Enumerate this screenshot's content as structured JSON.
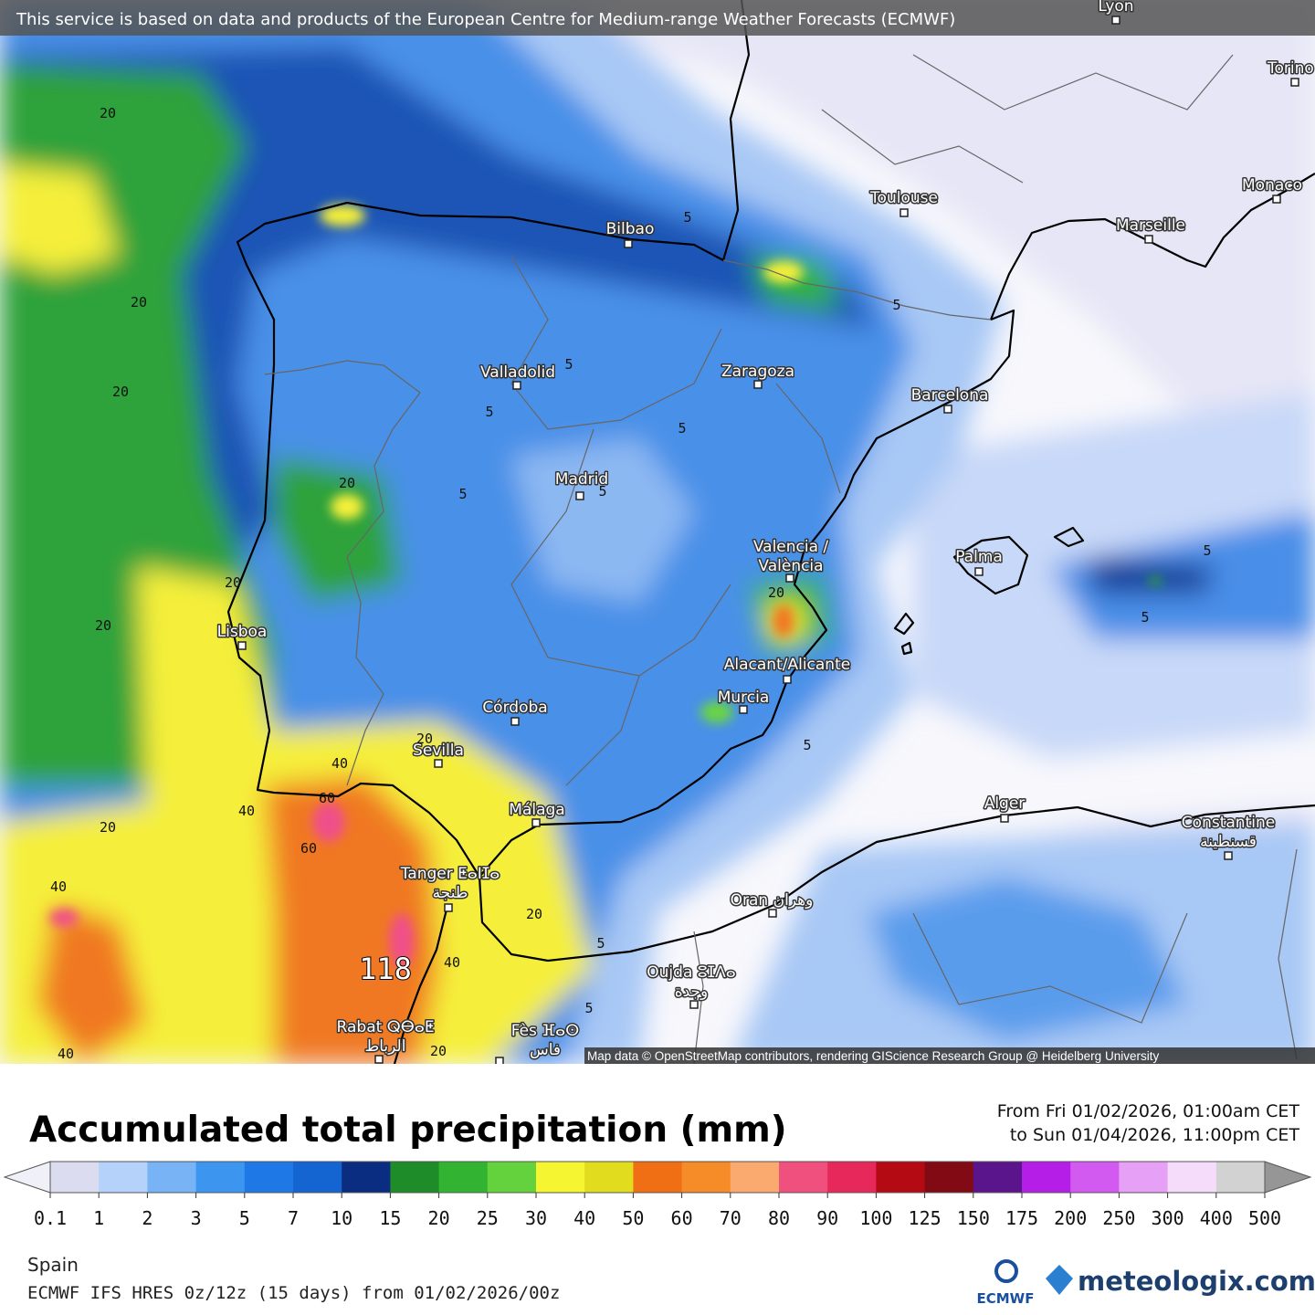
{
  "banner": "This service is based on data and products of the European Centre for Medium-range Weather Forecasts (ECMWF)",
  "attribution": "Map data © OpenStreetMap contributors, rendering GIScience Research Group @ Heidelberg University",
  "cities": [
    [
      "Lyon"
    ],
    [
      "Torino"
    ],
    [
      "Monaco"
    ],
    [
      "Toulouse"
    ],
    [
      "Marseille"
    ],
    [
      "Bilbao"
    ],
    [
      "Valladolid"
    ],
    [
      "Zaragoza"
    ],
    [
      "Barcelona"
    ],
    [
      "Madrid"
    ],
    [
      "Valencia /",
      "València"
    ],
    [
      "Palma"
    ],
    [
      "Lisboa"
    ],
    [
      "Alacant/Alicante"
    ],
    [
      "Murcia"
    ],
    [
      "Córdoba"
    ],
    [
      "Sevilla"
    ],
    [
      "Málaga"
    ],
    [
      "Alger"
    ],
    [
      "Constantine",
      "قسنطينة"
    ],
    [
      "Tanger ⵟⴰⵏⵊⴰ",
      "طنجة"
    ],
    [
      "Oran وهران"
    ],
    [
      "Oujda ⵓⵊⴷⴰ",
      "وجدة"
    ],
    [
      "Rabat ⵕⴱⴰⵟ",
      "الرباط"
    ],
    [
      "Fès ⴼⴰⵙ",
      "فاس"
    ]
  ],
  "contour_labels": [
    20,
    20,
    20,
    20,
    20,
    20,
    20,
    20,
    20,
    20,
    20,
    5,
    5,
    5,
    5,
    5,
    5,
    5,
    5,
    5,
    5,
    5,
    5,
    40,
    40,
    40,
    40,
    40,
    60,
    60
  ],
  "max_label": 118,
  "legend": {
    "title": "Accumulated total precipitation (mm)",
    "period": [
      "From Fri 01/02/2026, 01:00am CET",
      "to Sun 01/04/2026, 11:00pm CET"
    ],
    "ticks": [
      0.1,
      1,
      2,
      3,
      5,
      7,
      10,
      15,
      20,
      25,
      30,
      40,
      50,
      60,
      70,
      80,
      90,
      100,
      125,
      150,
      175,
      200,
      250,
      300,
      400,
      500
    ],
    "colors": [
      "#dcdcf0",
      "#b4d2fa",
      "#78b4f5",
      "#3c96f0",
      "#1e78e6",
      "#1464d2",
      "#0a2d82",
      "#1e8c28",
      "#32b432",
      "#64d23c",
      "#f5f532",
      "#e1dc1e",
      "#f06e14",
      "#f58c28",
      "#faaa6e",
      "#f0507d",
      "#e6285a",
      "#b40a14",
      "#820a14",
      "#5a148c",
      "#b41ee6",
      "#d25af0",
      "#e6a0f5",
      "#f5dcfa",
      "#d2d2d2"
    ],
    "under_color": "#f0f0f8",
    "over_color": "#969696"
  },
  "footer": {
    "region": "Spain",
    "model": "ECMWF IFS HRES 0z/12z (15 days) from  01/02/2026/00z"
  },
  "logos": [
    "ECMWF",
    "meteologix.com"
  ]
}
